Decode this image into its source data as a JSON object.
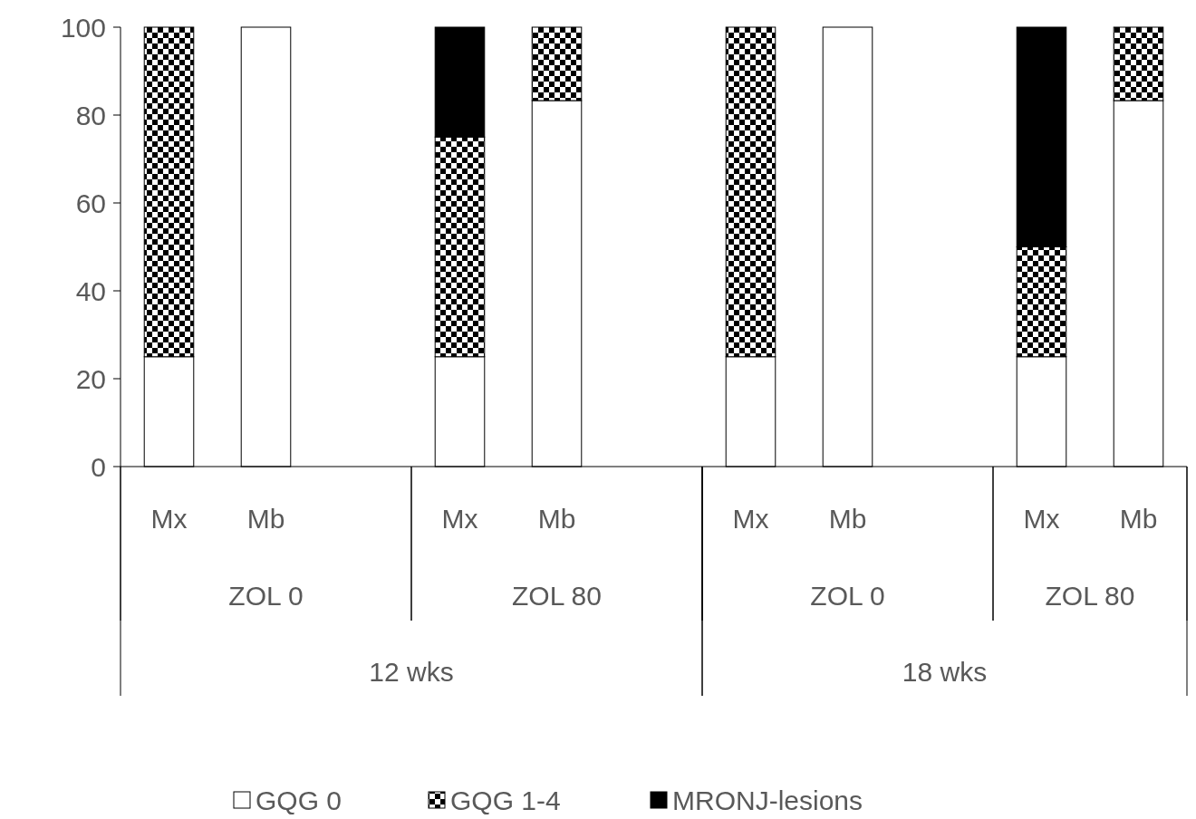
{
  "chart_data": {
    "type": "bar",
    "stacked": true,
    "categories": [
      "Mx",
      "Mb",
      null,
      "Mx",
      "Mb",
      null,
      "Mx",
      "Mb",
      null,
      "Mx",
      "Mb"
    ],
    "series": [
      {
        "name": "GQG 0",
        "color": "#ffffff",
        "values": [
          25,
          100,
          null,
          25,
          83.3,
          null,
          25,
          100,
          null,
          25,
          83.3
        ]
      },
      {
        "name": "GQG 1-4",
        "color": "#000000",
        "values": [
          75,
          0,
          null,
          50,
          16.7,
          null,
          75,
          0,
          null,
          25,
          16.7
        ]
      },
      {
        "name": "MRONJ-lesions",
        "color": "#000000",
        "values": [
          0,
          0,
          null,
          25,
          0,
          null,
          0,
          0,
          null,
          50,
          0
        ]
      }
    ],
    "annotations": [
      "ZOL 0",
      "ZOL 80",
      "ZOL 0",
      "ZOL 80",
      "12 wks",
      "18 wks"
    ],
    "ylim": [
      0,
      100
    ],
    "yticks": [
      0,
      20,
      40,
      60,
      80,
      100
    ],
    "grid": false,
    "legend": "bottom"
  }
}
